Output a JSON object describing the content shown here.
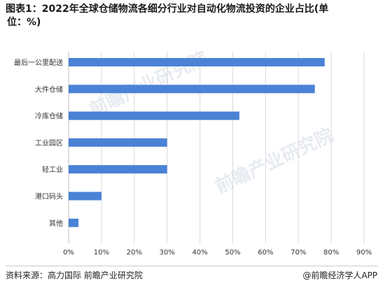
{
  "title": {
    "line1": "图表1：2022年全球仓储物流各细分行业对自动化物流投资的企业占比(单",
    "line2": "位：%)"
  },
  "footer": {
    "source": "资料来源：高力国际 前瞻产业研究院",
    "brand": "@前瞻经济学人APP"
  },
  "watermark": {
    "text": "前瞻产业研究院"
  },
  "colors": {
    "bar": "#4a82d6"
  },
  "chart_data": {
    "type": "bar",
    "orientation": "horizontal",
    "categories": [
      "最后一公里配送",
      "大件仓储",
      "冷库仓储",
      "工业园区",
      "轻工业",
      "港口码头",
      "其他"
    ],
    "values": [
      78,
      75,
      52,
      30,
      30,
      10,
      3
    ],
    "xticks": [
      "0%",
      "10%",
      "20%",
      "30%",
      "40%",
      "50%",
      "60%",
      "70%",
      "80%",
      "90%"
    ],
    "xlim": [
      0,
      90
    ],
    "grid": true
  }
}
